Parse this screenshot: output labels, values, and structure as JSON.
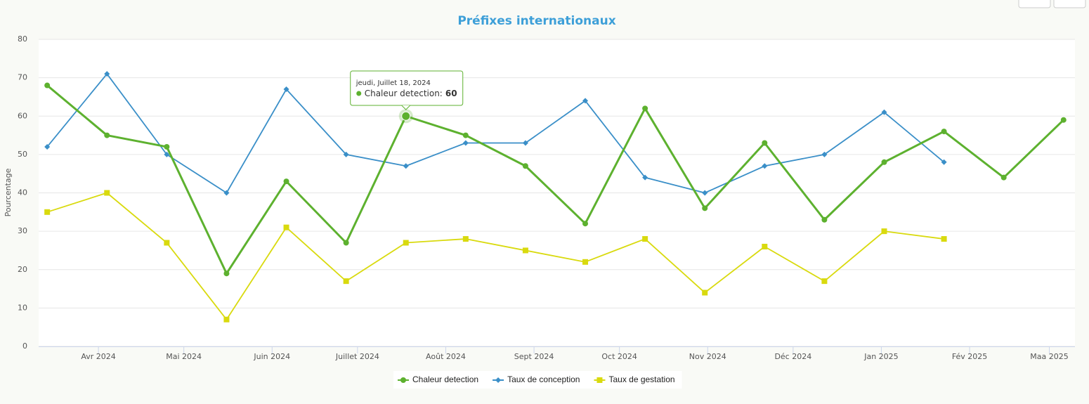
{
  "chart_data": {
    "type": "line",
    "title": "Préfixes internationaux",
    "y_label": "Pourcentage",
    "x": [
      "2024-03-14",
      "2024-04-04",
      "2024-04-25",
      "2024-05-16",
      "2024-06-06",
      "2024-06-27",
      "2024-07-18",
      "2024-08-08",
      "2024-08-29",
      "2024-09-19",
      "2024-10-10",
      "2024-10-31",
      "2024-11-21",
      "2024-12-12",
      "2025-01-02",
      "2025-01-23",
      "2025-02-13",
      "2025-03-06"
    ],
    "series": [
      {
        "name": "Chaleur detection",
        "color": "#5db12f",
        "marker": "circle",
        "line_width": 3,
        "values": [
          68,
          55,
          52,
          19,
          43,
          27,
          60,
          55,
          47,
          32,
          62,
          36,
          53,
          33,
          48,
          56,
          44,
          59
        ]
      },
      {
        "name": "Taux de conception",
        "color": "#3a8fc8",
        "marker": "diamond",
        "line_width": 1.8,
        "values": [
          52,
          71,
          50,
          40,
          67,
          50,
          47,
          53,
          53,
          64,
          44,
          40,
          47,
          50,
          61,
          48,
          null,
          null
        ]
      },
      {
        "name": "Taux de gestation",
        "color": "#d9da0e",
        "marker": "square",
        "line_width": 1.8,
        "values": [
          35,
          40,
          27,
          7,
          31,
          17,
          27,
          28,
          25,
          22,
          28,
          14,
          26,
          17,
          30,
          28,
          null,
          null
        ]
      }
    ],
    "xlim": [
      "2024-03-11",
      "2025-03-10"
    ],
    "xticks": [
      {
        "value": "2024-04-01",
        "label": "Avr 2024"
      },
      {
        "value": "2024-05-01",
        "label": "Mai 2024"
      },
      {
        "value": "2024-06-01",
        "label": "Juin 2024"
      },
      {
        "value": "2024-07-01",
        "label": "Juillet 2024"
      },
      {
        "value": "2024-08-01",
        "label": "Août 2024"
      },
      {
        "value": "2024-09-01",
        "label": "Sept 2024"
      },
      {
        "value": "2024-10-01",
        "label": "Oct 2024"
      },
      {
        "value": "2024-11-01",
        "label": "Nov 2024"
      },
      {
        "value": "2024-12-01",
        "label": "Déc 2024"
      },
      {
        "value": "2025-01-01",
        "label": "Jan 2025"
      },
      {
        "value": "2025-02-01",
        "label": "Fév 2025"
      },
      {
        "value": "2025-03-01",
        "label": "Maa 2025"
      }
    ],
    "ylim": [
      0,
      80
    ],
    "yticks": [
      0,
      10,
      20,
      30,
      40,
      50,
      60,
      70,
      80
    ],
    "grid": true,
    "legend": "bottom",
    "tooltip": {
      "series": 0,
      "index": 6,
      "header": "jeudi, Juillet 18, 2024",
      "label": "Chaleur detection:"
    }
  }
}
